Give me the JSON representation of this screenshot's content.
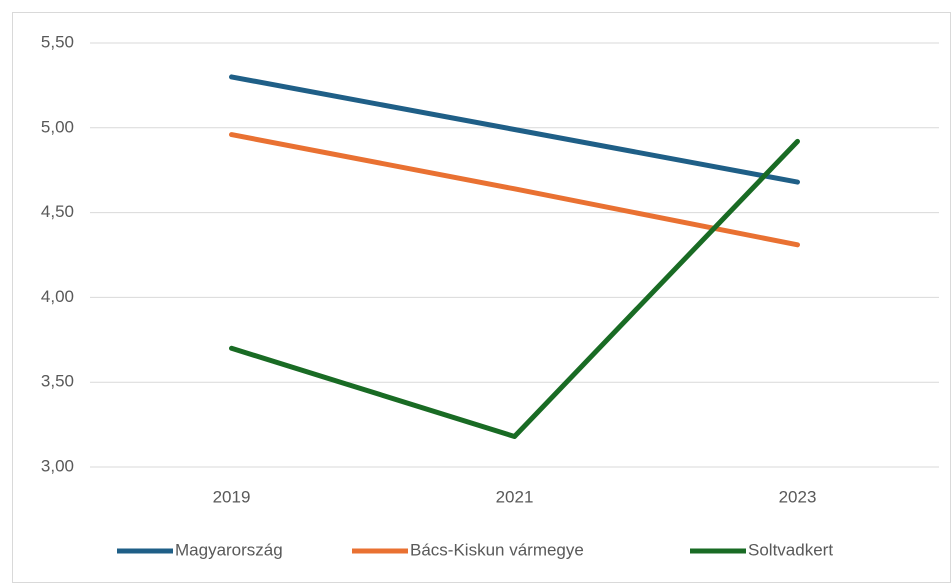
{
  "chart_data": {
    "type": "line",
    "categories": [
      "2019",
      "2021",
      "2023"
    ],
    "series": [
      {
        "name": "Magyarország",
        "color": "#1f5f87",
        "values": [
          5.3,
          4.99,
          4.68
        ]
      },
      {
        "name": "Bács-Kiskun vármegye",
        "color": "#e97132",
        "values": [
          4.96,
          4.64,
          4.31
        ]
      },
      {
        "name": "Soltvadkert",
        "color": "#196b24",
        "values": [
          3.7,
          3.18,
          4.92
        ]
      }
    ],
    "ylim": [
      3,
      5.5
    ],
    "yticks": [
      {
        "value": 3,
        "label": "3,00"
      },
      {
        "value": 3.5,
        "label": "3,50"
      },
      {
        "value": 4,
        "label": "4,00"
      },
      {
        "value": 4.5,
        "label": "4,50"
      },
      {
        "value": 5,
        "label": "5,00"
      },
      {
        "value": 5.5,
        "label": "5,50"
      }
    ],
    "grid": true,
    "legend": "bottom"
  }
}
